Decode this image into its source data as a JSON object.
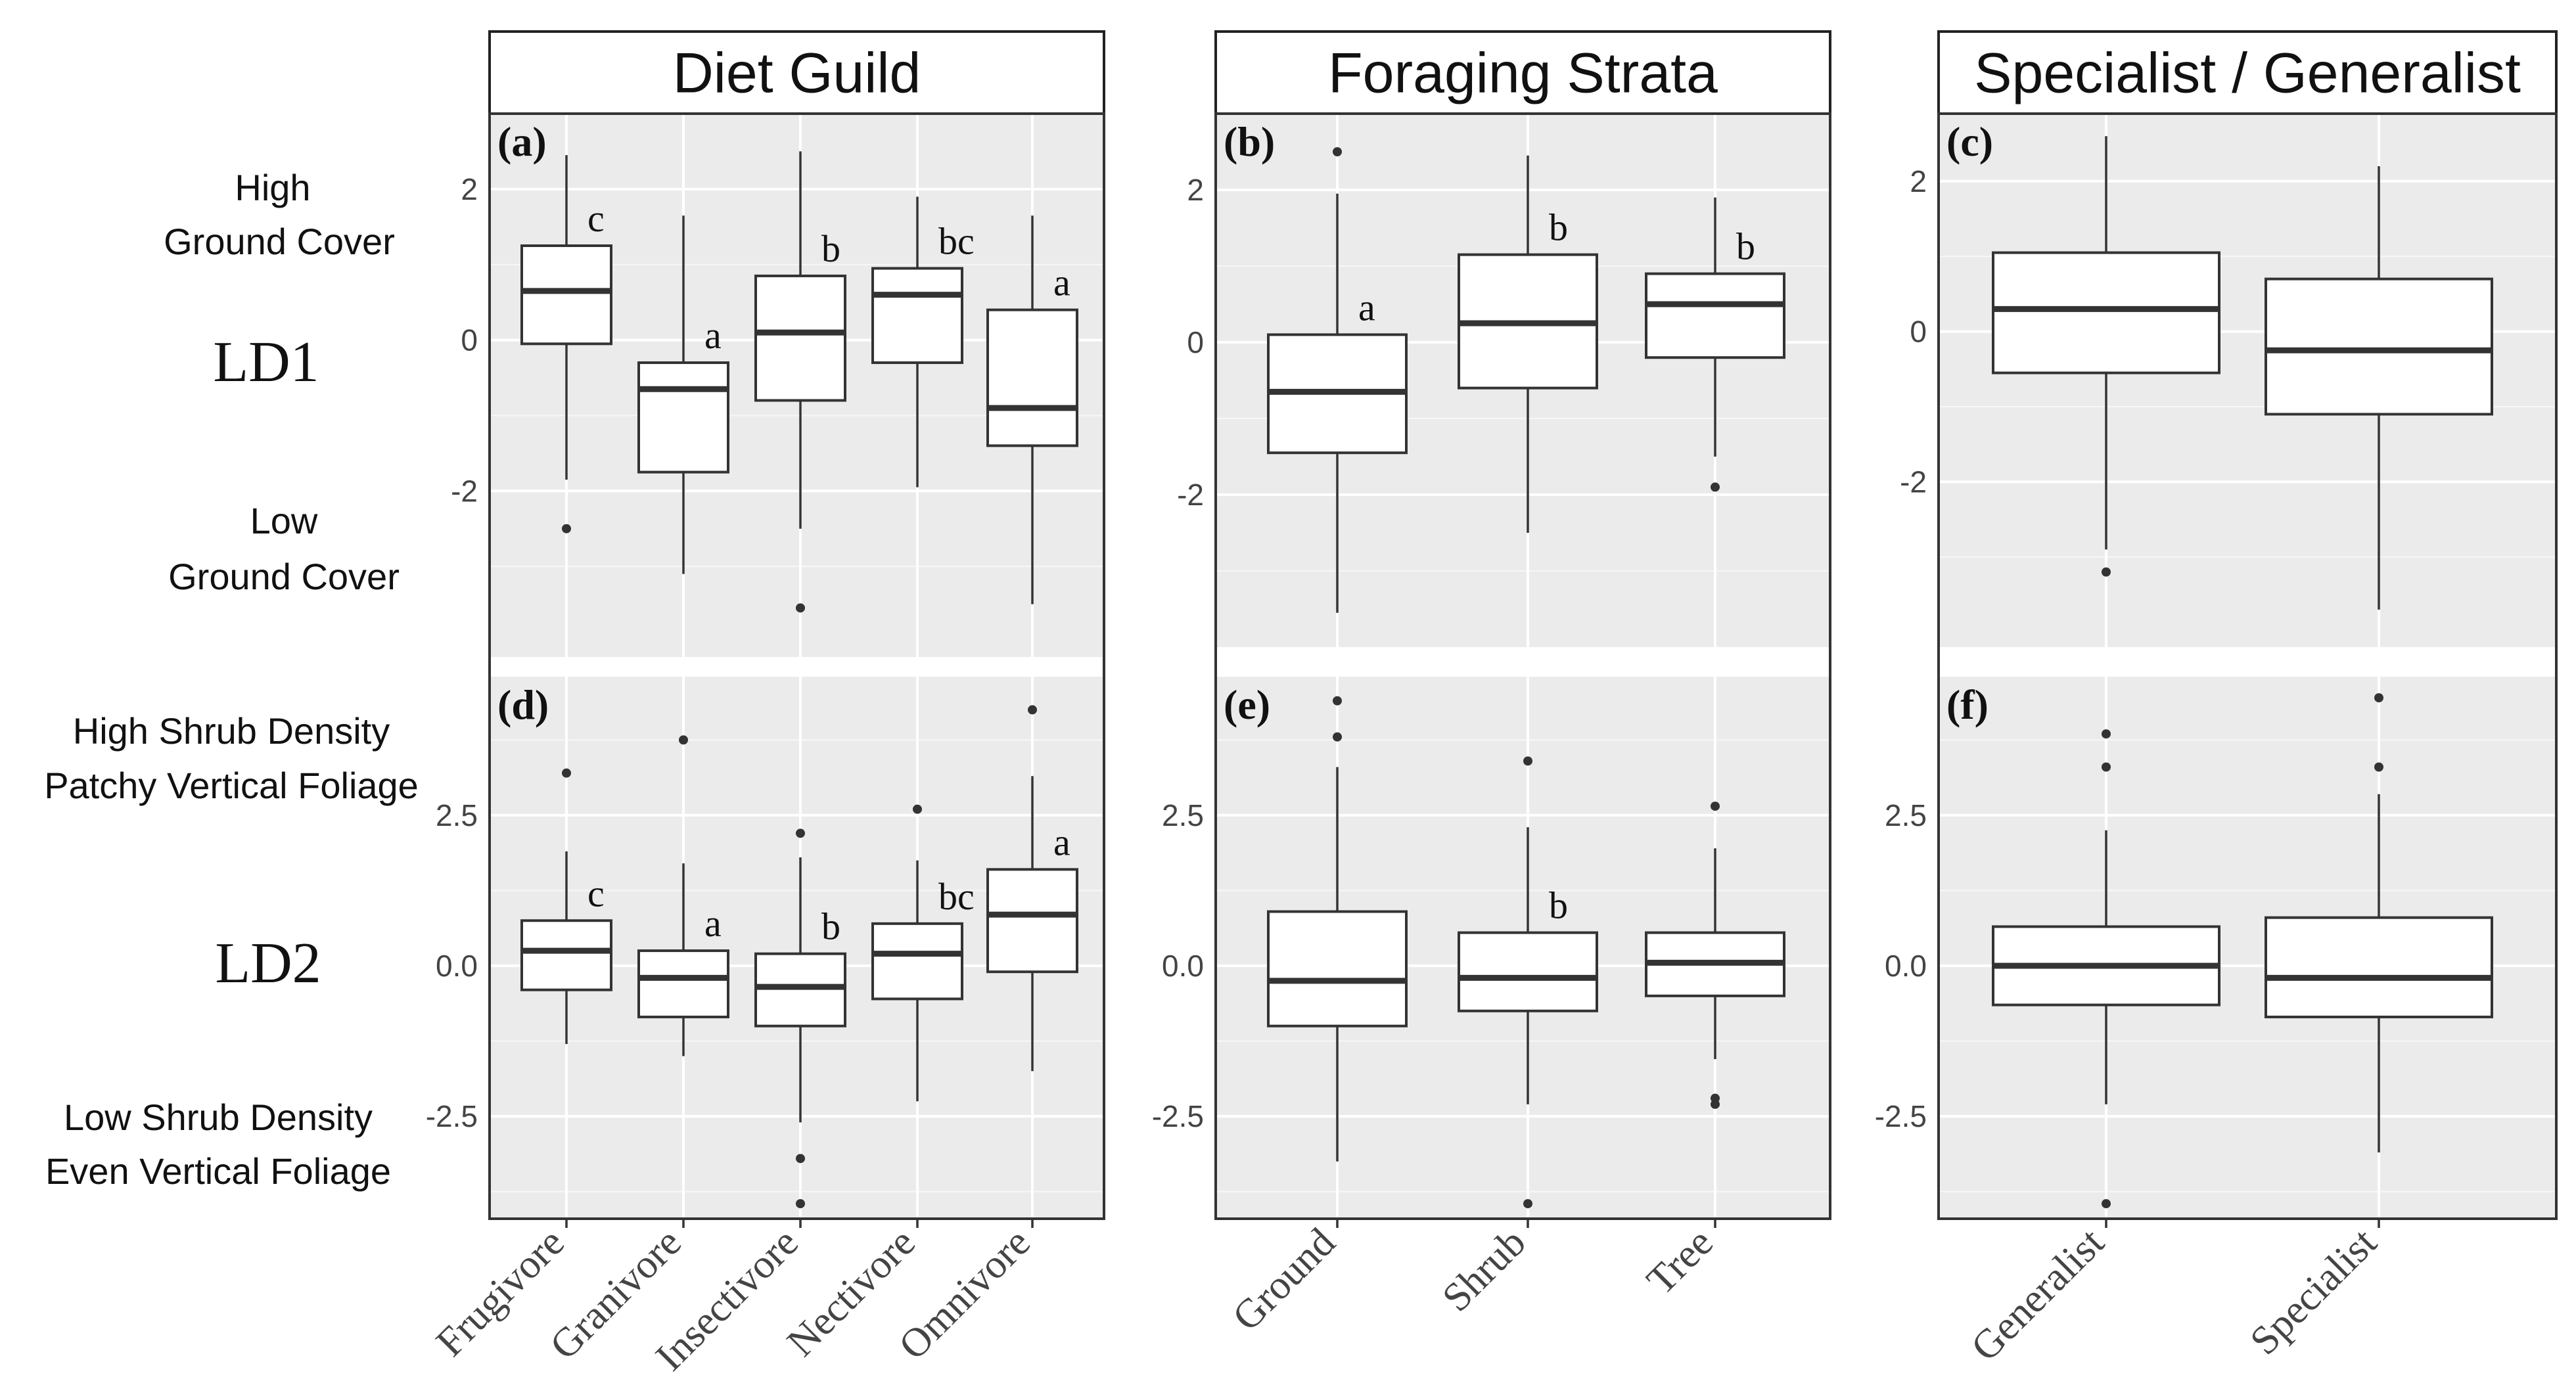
{
  "left_annotations": {
    "ld1": {
      "label": "LD1",
      "high_lines": [
        "High",
        "Ground Cover"
      ],
      "low_lines": [
        "Low",
        "Ground Cover"
      ]
    },
    "ld2": {
      "label": "LD2",
      "high_lines": [
        "High Shrub Density",
        "Patchy Vertical Foliage"
      ],
      "low_lines": [
        "Low Shrub Density",
        "Even Vertical Foliage"
      ]
    }
  },
  "chart_data": [
    {
      "type": "box",
      "facet": "Diet Guild",
      "categories": [
        "Frugivore",
        "Granivore",
        "Insectivore",
        "Nectivore",
        "Omnivore"
      ],
      "rows": [
        {
          "panel": "(a)",
          "axis": "LD1",
          "ylim": [
            -4.2,
            3.0
          ],
          "ticks": [
            2,
            0,
            -2
          ],
          "tick_labels": [
            "2",
            "0",
            "-2"
          ],
          "boxes": [
            {
              "q1": -0.05,
              "median": 0.65,
              "q3": 1.25,
              "lo": -1.85,
              "hi": 2.45,
              "outliers": [
                -2.5
              ],
              "sig": "c"
            },
            {
              "q1": -1.75,
              "median": -0.65,
              "q3": -0.3,
              "lo": -3.1,
              "hi": 1.65,
              "outliers": [],
              "sig": "a"
            },
            {
              "q1": -0.8,
              "median": 0.1,
              "q3": 0.85,
              "lo": -2.5,
              "hi": 2.5,
              "outliers": [
                -3.55
              ],
              "sig": "b"
            },
            {
              "q1": -0.3,
              "median": 0.6,
              "q3": 0.95,
              "lo": -1.95,
              "hi": 1.9,
              "outliers": [],
              "sig": "bc"
            },
            {
              "q1": -1.4,
              "median": -0.9,
              "q3": 0.4,
              "lo": -3.5,
              "hi": 1.65,
              "outliers": [],
              "sig": "a"
            }
          ]
        },
        {
          "panel": "(d)",
          "axis": "LD2",
          "ylim": [
            -4.2,
            4.8
          ],
          "ticks": [
            2.5,
            0.0,
            -2.5
          ],
          "tick_labels": [
            "2.5",
            "0.0",
            "-2.5"
          ],
          "boxes": [
            {
              "q1": -0.4,
              "median": 0.25,
              "q3": 0.75,
              "lo": -1.3,
              "hi": 1.9,
              "outliers": [
                3.2
              ],
              "sig": "c"
            },
            {
              "q1": -0.85,
              "median": -0.2,
              "q3": 0.25,
              "lo": -1.5,
              "hi": 1.7,
              "outliers": [
                3.75
              ],
              "sig": "a"
            },
            {
              "q1": -1.0,
              "median": -0.35,
              "q3": 0.2,
              "lo": -2.6,
              "hi": 1.8,
              "outliers": [
                2.2,
                -3.2,
                -3.95
              ],
              "sig": "b"
            },
            {
              "q1": -0.55,
              "median": 0.2,
              "q3": 0.7,
              "lo": -2.25,
              "hi": 1.75,
              "outliers": [
                2.6
              ],
              "sig": "bc"
            },
            {
              "q1": -0.1,
              "median": 0.85,
              "q3": 1.6,
              "lo": -1.75,
              "hi": 3.15,
              "outliers": [
                4.25
              ],
              "sig": "a"
            }
          ]
        }
      ]
    },
    {
      "type": "box",
      "facet": "Foraging Strata",
      "categories": [
        "Ground",
        "Shrub",
        "Tree"
      ],
      "rows": [
        {
          "panel": "(b)",
          "axis": "LD1",
          "ylim": [
            -4.0,
            3.0
          ],
          "ticks": [
            2,
            0,
            -2
          ],
          "tick_labels": [
            "2",
            "0",
            "-2"
          ],
          "boxes": [
            {
              "q1": -1.45,
              "median": -0.65,
              "q3": 0.1,
              "lo": -3.55,
              "hi": 1.95,
              "outliers": [
                2.5
              ],
              "sig": "a"
            },
            {
              "q1": -0.6,
              "median": 0.25,
              "q3": 1.15,
              "lo": -2.5,
              "hi": 2.45,
              "outliers": [],
              "sig": "b"
            },
            {
              "q1": -0.2,
              "median": 0.5,
              "q3": 0.9,
              "lo": -1.5,
              "hi": 1.9,
              "outliers": [
                -1.9
              ],
              "sig": "b"
            }
          ]
        },
        {
          "panel": "(e)",
          "axis": "LD2",
          "ylim": [
            -4.2,
            4.8
          ],
          "ticks": [
            2.5,
            0.0,
            -2.5
          ],
          "tick_labels": [
            "2.5",
            "0.0",
            "-2.5"
          ],
          "boxes": [
            {
              "q1": -1.0,
              "median": -0.25,
              "q3": 0.9,
              "lo": -3.25,
              "hi": 3.3,
              "outliers": [
                4.4,
                3.8
              ],
              "sig": ""
            },
            {
              "q1": -0.75,
              "median": -0.2,
              "q3": 0.55,
              "lo": -2.3,
              "hi": 2.3,
              "outliers": [
                3.4,
                -3.95
              ],
              "sig": "b"
            },
            {
              "q1": -0.5,
              "median": 0.05,
              "q3": 0.55,
              "lo": -1.55,
              "hi": 1.95,
              "outliers": [
                2.65,
                -2.2,
                -2.3
              ],
              "sig": ""
            }
          ]
        }
      ]
    },
    {
      "type": "box",
      "facet": "Specialist / Generalist",
      "categories": [
        "Generalist",
        "Specialist"
      ],
      "rows": [
        {
          "panel": "(c)",
          "axis": "LD1",
          "ylim": [
            -4.2,
            2.9
          ],
          "ticks": [
            2,
            0,
            -2
          ],
          "tick_labels": [
            "2",
            "0",
            "-2"
          ],
          "boxes": [
            {
              "q1": -0.55,
              "median": 0.3,
              "q3": 1.05,
              "lo": -2.9,
              "hi": 2.6,
              "outliers": [
                -3.2
              ],
              "sig": ""
            },
            {
              "q1": -1.1,
              "median": -0.25,
              "q3": 0.7,
              "lo": -3.7,
              "hi": 2.2,
              "outliers": [],
              "sig": ""
            }
          ]
        },
        {
          "panel": "(f)",
          "axis": "LD2",
          "ylim": [
            -4.2,
            4.8
          ],
          "ticks": [
            2.5,
            0.0,
            -2.5
          ],
          "tick_labels": [
            "2.5",
            "0.0",
            "-2.5"
          ],
          "boxes": [
            {
              "q1": -0.65,
              "median": 0.0,
              "q3": 0.65,
              "lo": -2.3,
              "hi": 2.25,
              "outliers": [
                3.85,
                3.3,
                -3.95
              ],
              "sig": ""
            },
            {
              "q1": -0.85,
              "median": -0.2,
              "q3": 0.8,
              "lo": -3.1,
              "hi": 2.85,
              "outliers": [
                4.45,
                3.3
              ],
              "sig": ""
            }
          ]
        }
      ]
    }
  ]
}
